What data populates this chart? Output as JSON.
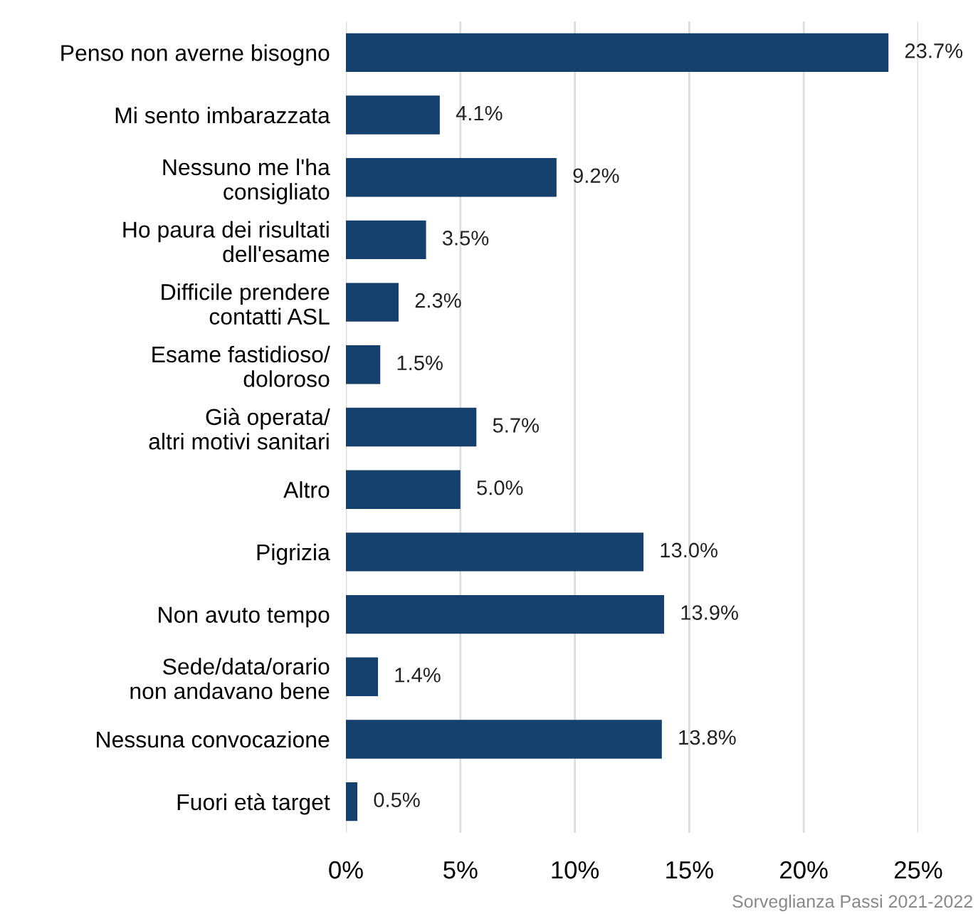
{
  "chart_data": {
    "type": "bar",
    "orientation": "horizontal",
    "categories": [
      "Penso non averne bisogno",
      "Mi sento imbarazzata",
      "Nessuno me l'ha\nconsigliato",
      "Ho paura dei risultati\ndell'esame",
      "Difficile prendere\ncontatti ASL",
      "Esame fastidioso/\ndoloroso",
      "Già operata/\naltri motivi sanitari",
      "Altro",
      "Pigrizia",
      "Non avuto tempo",
      "Sede/data/orario\nnon andavano bene",
      "Nessuna convocazione",
      "Fuori età target"
    ],
    "values": [
      23.7,
      4.1,
      9.2,
      3.5,
      2.3,
      1.5,
      5.7,
      5.0,
      13.0,
      13.9,
      1.4,
      13.8,
      0.5
    ],
    "value_labels": [
      "23.7%",
      "4.1%",
      "9.2%",
      "3.5%",
      "2.3%",
      "1.5%",
      "5.7%",
      "5.0%",
      "13.0%",
      "13.9%",
      "1.4%",
      "13.8%",
      "0.5%"
    ],
    "color": "#153f6d",
    "xlim": [
      0,
      25
    ],
    "xticks": [
      {
        "value": 0,
        "label": "0%"
      },
      {
        "value": 5,
        "label": "5%"
      },
      {
        "value": 10,
        "label": "10%"
      },
      {
        "value": 15,
        "label": "15%"
      },
      {
        "value": 20,
        "label": "20%"
      },
      {
        "value": 25,
        "label": "25%"
      }
    ],
    "grid": "x",
    "annotations": [
      "Sorveglianza Passi 2021-2022"
    ]
  }
}
